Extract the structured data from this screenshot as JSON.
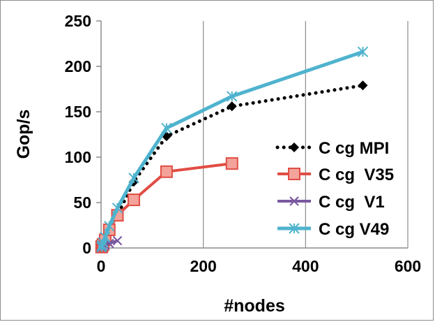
{
  "chart_data": {
    "type": "line",
    "title": "",
    "xlabel": "#nodes",
    "ylabel": "Gop/s",
    "xlim": [
      0,
      600
    ],
    "ylim": [
      0,
      250
    ],
    "x_ticks": [
      "0",
      "200",
      "400",
      "600"
    ],
    "y_ticks": [
      "0",
      "50",
      "100",
      "150",
      "200",
      "250"
    ],
    "grid": "vertical gridlines only",
    "legend_position": "right",
    "series": [
      {
        "name": "C cg MPI",
        "color": "#000000",
        "line": "dotted",
        "marker": "diamond",
        "x": [
          1,
          2,
          4,
          8,
          16,
          32,
          64,
          128,
          256,
          512
        ],
        "y": [
          1,
          2,
          4,
          9,
          18,
          36,
          73,
          123,
          156,
          179
        ]
      },
      {
        "name": "C cg  V35",
        "color": "#e04d44",
        "line": "solid",
        "marker": "square",
        "x": [
          1,
          2,
          4,
          8,
          16,
          32,
          64,
          128,
          256
        ],
        "y": [
          1,
          2,
          4,
          9,
          20,
          36,
          53,
          84,
          93
        ]
      },
      {
        "name": "C cg  V1",
        "color": "#7a58a0",
        "line": "solid",
        "marker": "x",
        "x": [
          1,
          2,
          4,
          8,
          16,
          32
        ],
        "y": [
          0.5,
          1,
          2,
          3,
          5,
          8
        ]
      },
      {
        "name": "C cg V49",
        "color": "#4fb3ce",
        "line": "solid",
        "marker": "asterisk",
        "x": [
          1,
          2,
          4,
          8,
          16,
          32,
          64,
          128,
          256,
          512
        ],
        "y": [
          1,
          3,
          6,
          12,
          24,
          44,
          77,
          132,
          167,
          216
        ]
      }
    ]
  }
}
